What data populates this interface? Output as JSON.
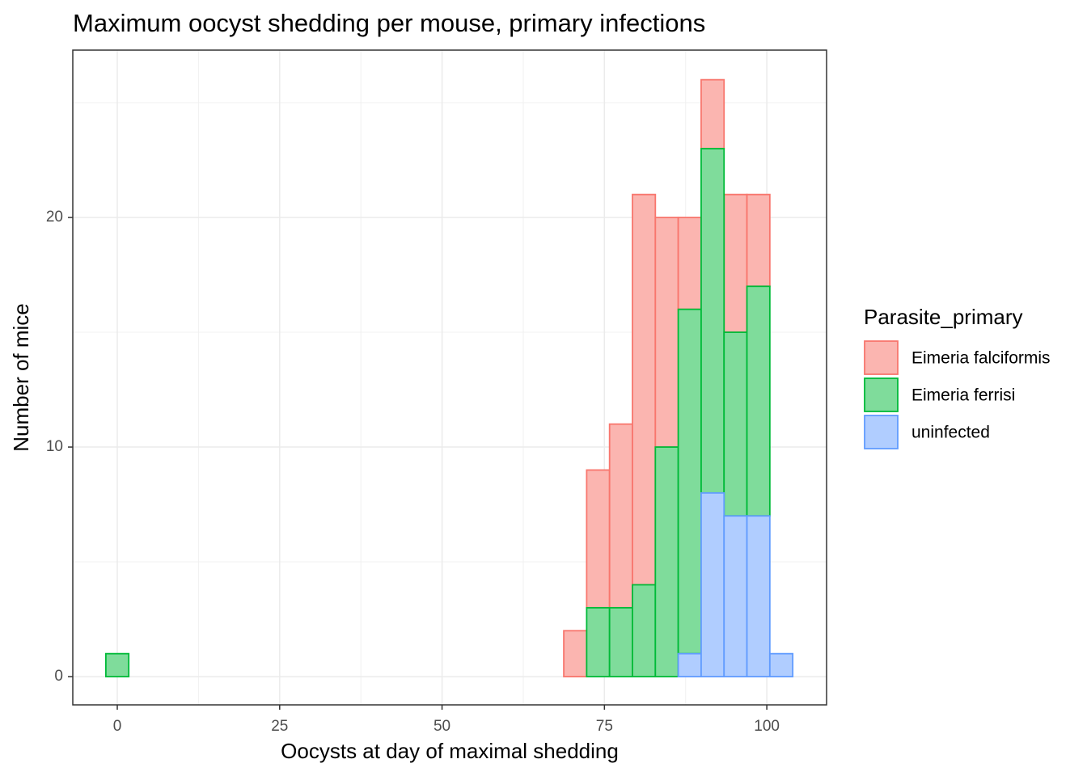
{
  "chart_data": {
    "type": "histogram",
    "title": "Maximum oocyst shedding per mouse, primary infections",
    "xlabel": "Oocysts at day of maximal shedding",
    "ylabel": "Number of mice",
    "legend_title": "Parasite_primary",
    "legend": "right",
    "stacked": true,
    "grid": true,
    "bins": [
      -1.76,
      1.765,
      5.29,
      8.815,
      12.34,
      15.865,
      19.39,
      22.915,
      26.44,
      29.965,
      33.49,
      37.015,
      40.54,
      44.065,
      47.59,
      51.115,
      54.64,
      58.165,
      61.69,
      65.215,
      68.74,
      72.265,
      75.79,
      79.315,
      82.84,
      86.365,
      89.89,
      93.415,
      96.94,
      100.465,
      103.99
    ],
    "series": [
      {
        "name": "Eimeria falciformis",
        "color": "#F8766D",
        "fill": "#fbb5b0",
        "values": [
          0,
          0,
          0,
          0,
          0,
          0,
          0,
          0,
          0,
          0,
          0,
          0,
          0,
          0,
          0,
          0,
          0,
          0,
          0,
          0,
          2,
          6,
          8,
          17,
          10,
          4,
          3,
          6,
          4,
          0
        ]
      },
      {
        "name": "Eimeria ferrisi",
        "color": "#00BA38",
        "fill": "#7fdc9b",
        "values": [
          1,
          0,
          0,
          0,
          0,
          0,
          0,
          0,
          0,
          0,
          0,
          0,
          0,
          0,
          0,
          0,
          0,
          0,
          0,
          0,
          0,
          3,
          3,
          4,
          10,
          15,
          15,
          8,
          10,
          0
        ]
      },
      {
        "name": "uninfected",
        "color": "#619CFF",
        "fill": "#b0cdff",
        "values": [
          0,
          0,
          0,
          0,
          0,
          0,
          0,
          0,
          0,
          0,
          0,
          0,
          0,
          0,
          0,
          0,
          0,
          0,
          0,
          0,
          0,
          0,
          0,
          0,
          0,
          1,
          8,
          7,
          7,
          1
        ]
      }
    ],
    "xlim": [
      -6.85,
      109.2
    ],
    "xticks": [
      0,
      25,
      50,
      75,
      100
    ],
    "ylim": [
      -1.23,
      27.29
    ],
    "yticks": [
      0,
      10,
      20
    ]
  }
}
